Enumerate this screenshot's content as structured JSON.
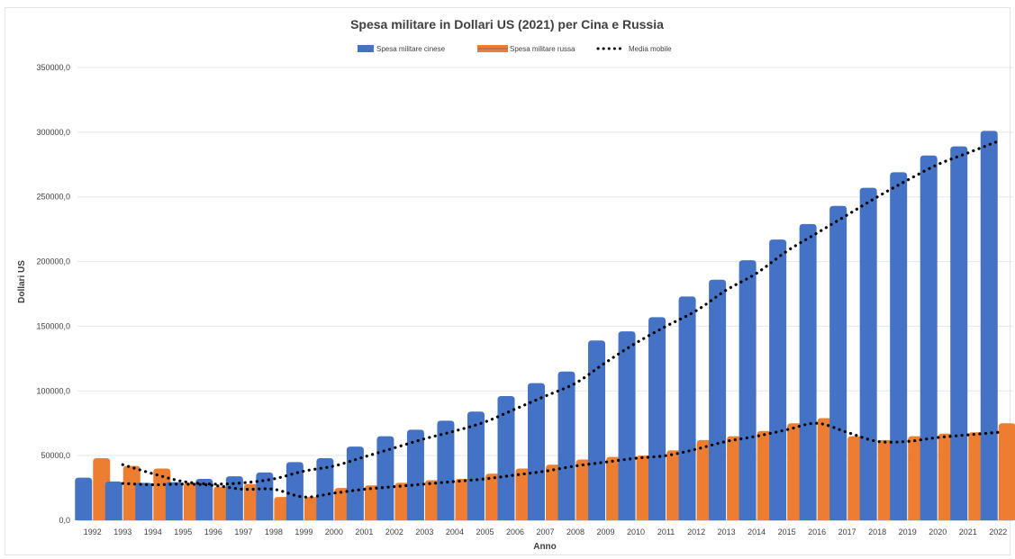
{
  "chart_data": {
    "type": "bar",
    "title": "Spesa militare in Dollari US (2021) per Cina e Russia",
    "xlabel": "Anno",
    "ylabel": "Dollari US",
    "ylim": [
      0,
      350000
    ],
    "y_ticks": [
      "0,0",
      "50000,0",
      "100000,0",
      "150000,0",
      "200000,0",
      "250000,0",
      "300000,0",
      "350000,0"
    ],
    "grid": true,
    "legend_position": "top",
    "categories": [
      "1992",
      "1993",
      "1994",
      "1995",
      "1996",
      "1997",
      "1998",
      "1999",
      "2000",
      "2001",
      "2002",
      "2003",
      "2004",
      "2005",
      "2006",
      "2007",
      "2008",
      "2009",
      "2010",
      "2011",
      "2012",
      "2013",
      "2014",
      "2015",
      "2016",
      "2017",
      "2018",
      "2019",
      "2020",
      "2021",
      "2022"
    ],
    "series": [
      {
        "name": "Spesa militare cinese",
        "color": "#4472C4",
        "values": [
          33000,
          30000,
          29000,
          29500,
          32000,
          34000,
          37000,
          45000,
          48000,
          57000,
          65000,
          70000,
          77000,
          84000,
          96000,
          106000,
          115000,
          139000,
          146000,
          157000,
          173000,
          186000,
          201000,
          217000,
          229000,
          243000,
          257000,
          269000,
          282000,
          289000,
          301000
        ]
      },
      {
        "name": "Spesa militare russa",
        "color": "#ED7D31",
        "values": [
          48000,
          42000,
          40000,
          29000,
          26000,
          28000,
          18000,
          18000,
          25000,
          27000,
          29000,
          31000,
          32000,
          36000,
          40000,
          43000,
          47000,
          49000,
          50000,
          54000,
          62000,
          65000,
          69000,
          75000,
          79000,
          65000,
          62000,
          65000,
          67000,
          68000,
          75000
        ]
      }
    ],
    "trendlines": [
      {
        "name": "Media mobile",
        "color": "#000000",
        "values": [
          null,
          43000,
          36000,
          30000,
          28000,
          29000,
          32000,
          38000,
          42000,
          49000,
          56000,
          63000,
          69000,
          76000,
          86000,
          96000,
          106000,
          122000,
          137000,
          150000,
          162000,
          178000,
          191000,
          208000,
          222000,
          236000,
          250000,
          263000,
          275000,
          284000,
          293000
        ]
      },
      {
        "name": "Media mobile",
        "color": "#000000",
        "values": [
          null,
          28500,
          27500,
          28000,
          27000,
          24000,
          24000,
          18000,
          21000,
          24000,
          26000,
          28000,
          30000,
          32000,
          35000,
          38000,
          42000,
          45000,
          48000,
          50000,
          55000,
          61000,
          65000,
          70000,
          75000,
          68000,
          61000,
          61000,
          64000,
          66000,
          68000
        ]
      }
    ]
  }
}
